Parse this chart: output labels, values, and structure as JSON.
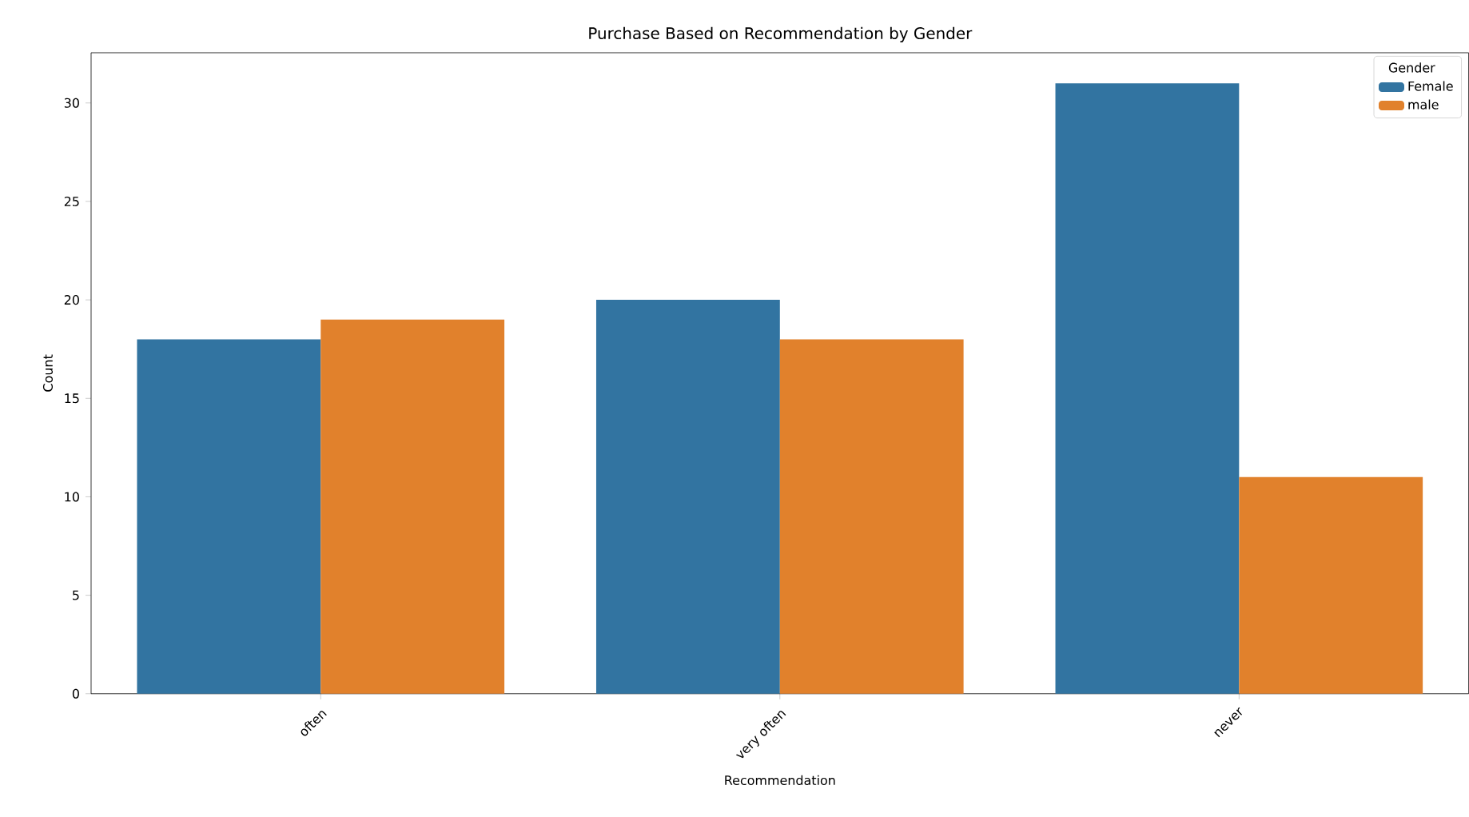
{
  "chart_data": {
    "type": "bar",
    "title": "Purchase Based on Recommendation by Gender",
    "xlabel": "Recommendation",
    "ylabel": "Count",
    "legend_title": "Gender",
    "categories": [
      "often",
      "very often",
      "never"
    ],
    "series": [
      {
        "name": "Female",
        "color": "#3274a1",
        "values": [
          18,
          20,
          31
        ]
      },
      {
        "name": "male",
        "color": "#e1812c",
        "values": [
          19,
          18,
          11
        ]
      }
    ],
    "ylim": [
      0,
      32.55
    ],
    "yticks": [
      0,
      5,
      10,
      15,
      20,
      25,
      30
    ],
    "legend": "top right",
    "grid": false
  }
}
